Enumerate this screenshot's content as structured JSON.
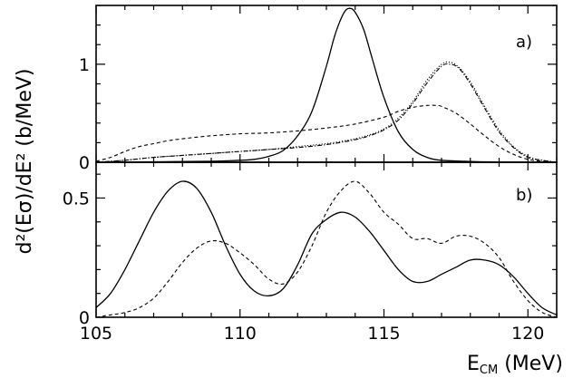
{
  "chart_data": [
    {
      "panel_label": "a)",
      "type": "line",
      "ylabel": "d²(Eσ)/dE² (b/MeV)",
      "xlim": [
        105,
        121
      ],
      "ylim": [
        0,
        1.6
      ],
      "x_ticks": [],
      "y_ticks": [
        0,
        1
      ],
      "y_tick_labels": [
        "0",
        "1"
      ],
      "grid": false,
      "legend": "none",
      "series": [
        {
          "style": "solid",
          "x": [
            105,
            107,
            109,
            110,
            110.5,
            111,
            111.5,
            112,
            112.5,
            113,
            113.3,
            113.6,
            113.8,
            114.0,
            114.3,
            114.6,
            115,
            115.5,
            116,
            116.5,
            117,
            118,
            119,
            120,
            121
          ],
          "y": [
            0,
            0.005,
            0.01,
            0.02,
            0.03,
            0.06,
            0.12,
            0.27,
            0.52,
            0.98,
            1.3,
            1.52,
            1.57,
            1.53,
            1.35,
            1.05,
            0.66,
            0.31,
            0.13,
            0.05,
            0.02,
            0.008,
            0.003,
            0.001,
            0
          ]
        },
        {
          "style": "dashed",
          "x": [
            105,
            105.5,
            106,
            106.5,
            107,
            107.5,
            108,
            109,
            110,
            111,
            112,
            113,
            114,
            115,
            115.5,
            116,
            116.5,
            116.8,
            117,
            117.5,
            118,
            118.5,
            119,
            119.5,
            120,
            120.5,
            121
          ],
          "y": [
            0.01,
            0.05,
            0.11,
            0.16,
            0.19,
            0.22,
            0.24,
            0.27,
            0.29,
            0.3,
            0.32,
            0.35,
            0.39,
            0.46,
            0.52,
            0.56,
            0.58,
            0.58,
            0.57,
            0.5,
            0.39,
            0.27,
            0.16,
            0.08,
            0.03,
            0.01,
            0
          ]
        },
        {
          "style": "dotted",
          "x": [
            105,
            106,
            107,
            108,
            109,
            110,
            111,
            112,
            113,
            114,
            114.5,
            115,
            115.5,
            116,
            116.5,
            117,
            117.3,
            117.6,
            118,
            118.5,
            119,
            119.5,
            120,
            120.5,
            121
          ],
          "y": [
            0,
            0.02,
            0.05,
            0.07,
            0.09,
            0.11,
            0.13,
            0.16,
            0.19,
            0.24,
            0.28,
            0.34,
            0.45,
            0.62,
            0.84,
            1.0,
            1.02,
            0.97,
            0.82,
            0.57,
            0.33,
            0.16,
            0.06,
            0.02,
            0
          ]
        },
        {
          "style": "dashdot",
          "x": [
            105,
            106,
            107,
            108,
            109,
            110,
            111,
            112,
            113,
            114,
            114.5,
            115,
            115.5,
            116,
            116.5,
            117,
            117.3,
            117.6,
            118,
            118.5,
            119,
            119.5,
            120,
            120.5,
            121
          ],
          "y": [
            0,
            0.02,
            0.05,
            0.07,
            0.09,
            0.11,
            0.13,
            0.15,
            0.18,
            0.23,
            0.27,
            0.33,
            0.43,
            0.6,
            0.81,
            0.98,
            1.0,
            0.96,
            0.8,
            0.55,
            0.31,
            0.15,
            0.05,
            0.02,
            0
          ]
        }
      ]
    },
    {
      "panel_label": "b)",
      "type": "line",
      "xlabel": "E_CM (MeV)",
      "xlim": [
        105,
        121
      ],
      "ylim": [
        0,
        0.65
      ],
      "x_ticks": [
        105,
        110,
        115,
        120
      ],
      "x_tick_labels": [
        "105",
        "110",
        "115",
        "120"
      ],
      "y_ticks": [
        0,
        0.5
      ],
      "y_tick_labels": [
        "0",
        "0.5"
      ],
      "grid": false,
      "legend": "none",
      "series": [
        {
          "style": "solid",
          "x": [
            105,
            105.5,
            106,
            106.5,
            107,
            107.5,
            108,
            108.5,
            109,
            109.5,
            110,
            110.5,
            111,
            111.5,
            112,
            112.5,
            113,
            113.5,
            114,
            114.5,
            115,
            115.5,
            116,
            116.5,
            117,
            117.5,
            118,
            118.5,
            119,
            119.5,
            120,
            120.5,
            121
          ],
          "y": [
            0.04,
            0.1,
            0.2,
            0.32,
            0.44,
            0.53,
            0.57,
            0.54,
            0.44,
            0.3,
            0.18,
            0.11,
            0.09,
            0.12,
            0.22,
            0.35,
            0.41,
            0.44,
            0.42,
            0.36,
            0.28,
            0.2,
            0.15,
            0.15,
            0.18,
            0.21,
            0.24,
            0.24,
            0.22,
            0.17,
            0.1,
            0.04,
            0.01
          ]
        },
        {
          "style": "dashed",
          "x": [
            105,
            105.5,
            106,
            106.5,
            107,
            107.5,
            108,
            108.5,
            109,
            109.5,
            110,
            110.5,
            111,
            111.5,
            112,
            112.5,
            113,
            113.5,
            114,
            114.5,
            115,
            115.5,
            116,
            116.5,
            117,
            117.5,
            118,
            118.5,
            119,
            119.5,
            120,
            120.5,
            121
          ],
          "y": [
            0.0,
            0.01,
            0.02,
            0.04,
            0.08,
            0.15,
            0.23,
            0.29,
            0.32,
            0.31,
            0.27,
            0.22,
            0.16,
            0.14,
            0.19,
            0.3,
            0.44,
            0.53,
            0.57,
            0.52,
            0.44,
            0.39,
            0.33,
            0.33,
            0.31,
            0.34,
            0.34,
            0.31,
            0.25,
            0.15,
            0.07,
            0.02,
            0.0
          ]
        }
      ]
    }
  ]
}
